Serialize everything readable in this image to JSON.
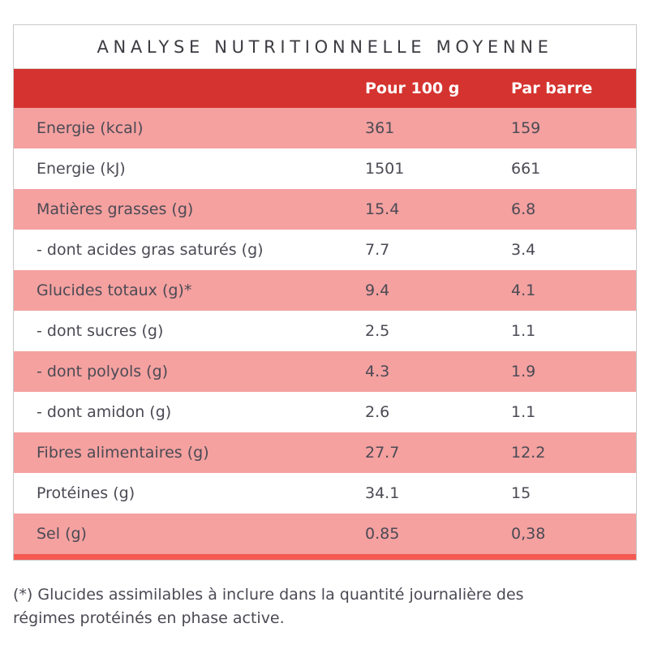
{
  "colors": {
    "header_red": "#d5332f",
    "row_pink": "#f4a1a0",
    "bottom_strip_red": "#f45a52",
    "border_gray": "#c9c9c9",
    "title_text": "#3b3b41",
    "body_text": "#4b4a54",
    "header_text": "#ffffff"
  },
  "table": {
    "title": "ANALYSE NUTRITIONNELLE MOYENNE",
    "column_headers": [
      "Pour 100 g",
      "Par barre"
    ],
    "rows": [
      {
        "label": "Energie (kcal)",
        "per_100g": "361",
        "per_barre": "159"
      },
      {
        "label": "Energie (kJ)",
        "per_100g": "1501",
        "per_barre": "661"
      },
      {
        "label": "Matières grasses (g)",
        "per_100g": "15.4",
        "per_barre": "6.8"
      },
      {
        "label": "- dont acides gras saturés (g)",
        "per_100g": "7.7",
        "per_barre": "3.4"
      },
      {
        "label": "Glucides totaux (g)*",
        "per_100g": "9.4",
        "per_barre": "4.1"
      },
      {
        "label": "- dont sucres (g)",
        "per_100g": "2.5",
        "per_barre": "1.1"
      },
      {
        "label": "- dont polyols (g)",
        "per_100g": "4.3",
        "per_barre": "1.9"
      },
      {
        "label": "- dont amidon (g)",
        "per_100g": "2.6",
        "per_barre": "1.1"
      },
      {
        "label": "Fibres alimentaires (g)",
        "per_100g": "27.7",
        "per_barre": "12.2"
      },
      {
        "label": "Protéines (g)",
        "per_100g": "34.1",
        "per_barre": "15"
      },
      {
        "label": "Sel (g)",
        "per_100g": "0.85",
        "per_barre": "0,38"
      }
    ]
  },
  "footnote": "(*) Glucides assimilables à inclure dans la quantité journalière des régimes protéinés en phase active."
}
